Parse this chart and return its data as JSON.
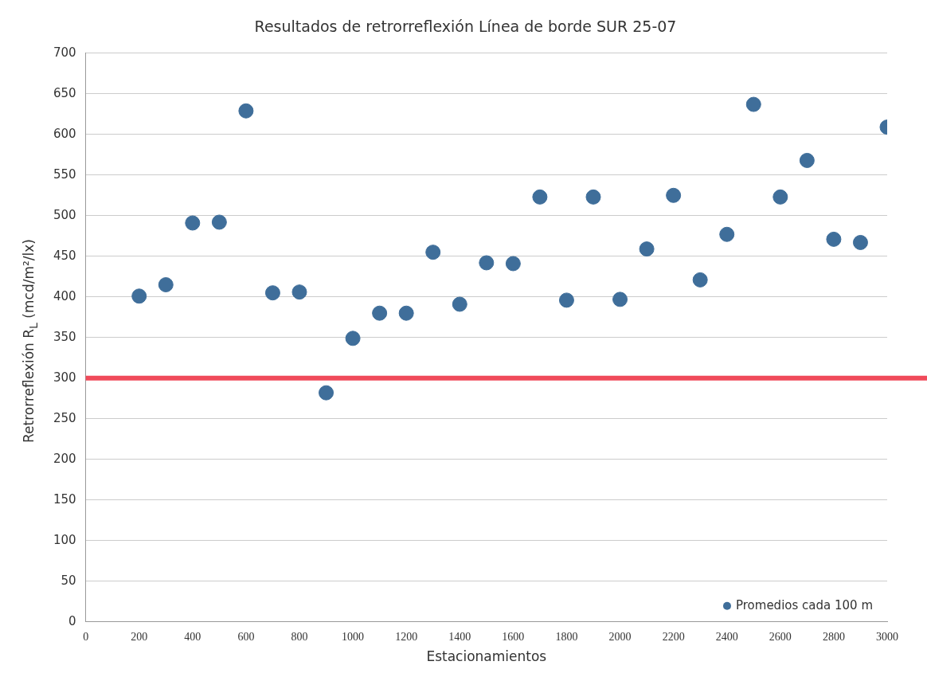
{
  "chart_data": {
    "type": "scatter",
    "title": "Resultados de retrorreflexión Línea de borde SUR 25-07",
    "xlabel": "Estacionamientos",
    "ylabel": "Retrorreflexión R$_{L}$ (mcd/m²/lx)",
    "x": [
      200,
      300,
      400,
      500,
      600,
      700,
      800,
      900,
      1000,
      1100,
      1200,
      1300,
      1400,
      1500,
      1600,
      1700,
      1800,
      1900,
      2000,
      2100,
      2200,
      2300,
      2400,
      2500,
      2600,
      2700,
      2800,
      2900,
      3000
    ],
    "series": [
      {
        "name": "Promedios cada 100 m",
        "color": "#3f6e9a",
        "values": [
          401,
          415,
          491,
          492,
          629,
          405,
          406,
          282,
          349,
          380,
          380,
          455,
          391,
          442,
          441,
          523,
          396,
          523,
          397,
          459,
          525,
          421,
          477,
          637,
          523,
          568,
          471,
          467,
          609
        ]
      }
    ],
    "xlim": [
      0,
      3000
    ],
    "xticks": [
      0,
      200,
      400,
      600,
      800,
      1000,
      1200,
      1400,
      1600,
      1800,
      2000,
      2200,
      2400,
      2600,
      2800,
      3000
    ],
    "ylim": [
      0,
      700
    ],
    "yticks": [
      0,
      50,
      100,
      150,
      200,
      250,
      300,
      350,
      400,
      450,
      500,
      550,
      600,
      650,
      700
    ],
    "ref_lines": [
      {
        "axis": "y",
        "value": 300,
        "color": "#f04a5a"
      }
    ],
    "grid": "y",
    "legend": "bottom right",
    "marker": "circle"
  }
}
